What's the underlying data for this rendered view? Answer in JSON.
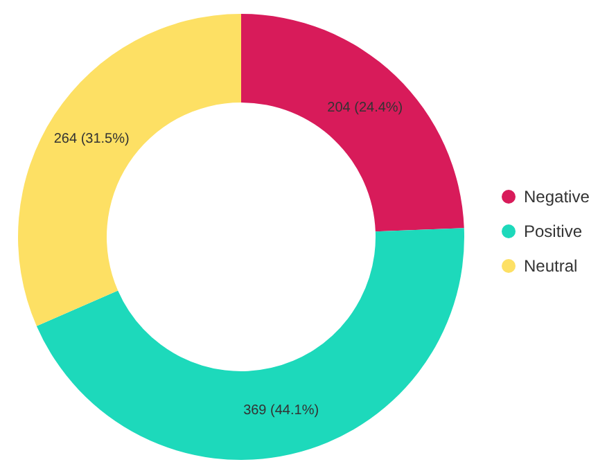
{
  "chart_data": {
    "type": "donut",
    "categories": [
      "Negative",
      "Positive",
      "Neutral"
    ],
    "values": [
      204,
      369,
      264
    ],
    "colors": [
      "#d81b5a",
      "#1dd9bb",
      "#fde064"
    ],
    "value_labels": [
      "204 (24.4%)",
      "369 (44.1%)",
      "264 (31.5%)"
    ],
    "legend": "right"
  }
}
